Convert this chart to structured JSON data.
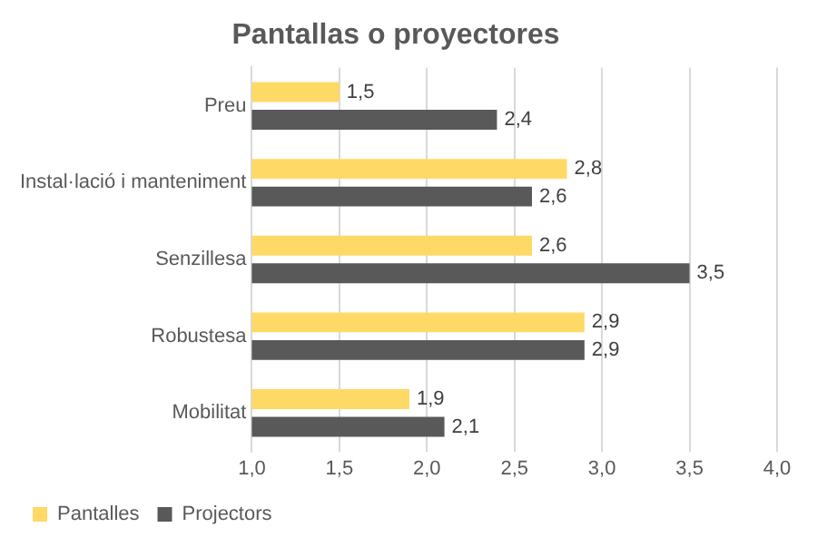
{
  "chart_data": {
    "type": "bar",
    "orientation": "horizontal",
    "title": "Pantallas o proyectores",
    "categories": [
      "Preu",
      "Instal·lació i manteniment",
      "Senzillesa",
      "Robustesa",
      "Mobilitat"
    ],
    "series": [
      {
        "name": "Pantalles",
        "color": "#ffd966",
        "values": [
          1.5,
          2.8,
          2.6,
          2.9,
          1.9
        ],
        "value_labels": [
          "1,5",
          "2,8",
          "2,6",
          "2,9",
          "1,9"
        ]
      },
      {
        "name": "Projectors",
        "color": "#595959",
        "values": [
          2.4,
          2.6,
          3.5,
          2.9,
          2.1
        ],
        "value_labels": [
          "2,4",
          "2,6",
          "3,5",
          "2,9",
          "2,1"
        ]
      }
    ],
    "xlim": [
      1,
      4
    ],
    "xticks": [
      {
        "value": 1,
        "label": "1,0"
      },
      {
        "value": 1.5,
        "label": "1,5"
      },
      {
        "value": 2,
        "label": "2,0"
      },
      {
        "value": 2.5,
        "label": "2,5"
      },
      {
        "value": 3,
        "label": "3,0"
      },
      {
        "value": 3.5,
        "label": "3,5"
      },
      {
        "value": 4,
        "label": "4,0"
      }
    ],
    "grid": "x",
    "legend": "bottom left"
  }
}
